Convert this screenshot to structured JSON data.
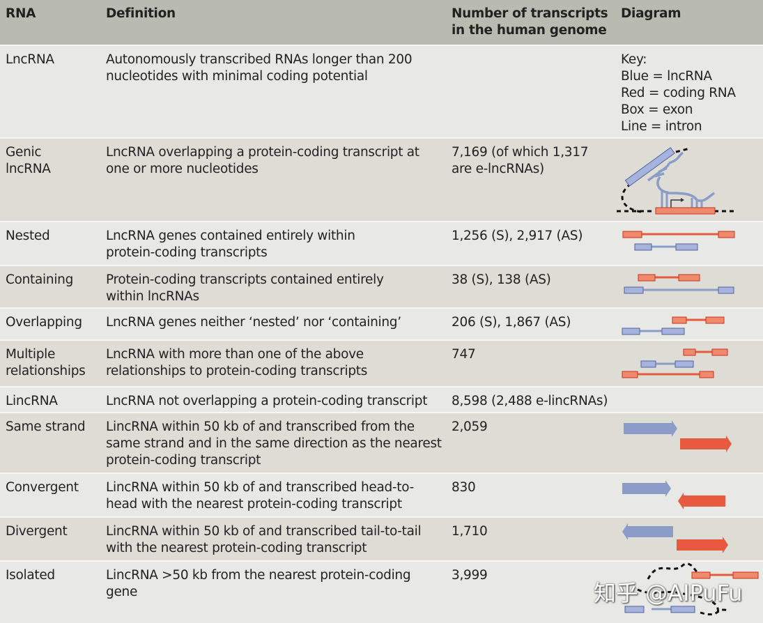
{
  "colors": {
    "lncrna": "#8c9cc8",
    "coding": "#e85a40",
    "header_bg": "#b9bab0",
    "row_light": "#e8e8e4",
    "row_dark": "#dddcd5"
  },
  "header": {
    "rna": "RNA",
    "definition": "Definition",
    "number": "Number of transcripts\nin the human genome",
    "diagram": "Diagram"
  },
  "rows": [
    {
      "rna": "LncRNA",
      "definition": "Autonomously transcribed RNAs longer than 200\nnucleotides with minimal coding potential",
      "number": "",
      "key": "Key:\nBlue = lncRNA\nRed = coding RNA\nBox = exon\nLine = intron"
    },
    {
      "rna": "Genic\nlncRNA",
      "definition": "LncRNA overlapping a protein-coding transcript at\none or more nucleotides",
      "number": "7,169 (of which 1,317\nare e-lncRNAs)",
      "diagram": "genic-structure"
    },
    {
      "rna": "Nested",
      "definition": "LncRNA genes contained entirely within\nprotein-coding transcripts",
      "number": "1,256 (S), 2,917 (AS)",
      "diagram": "nested"
    },
    {
      "rna": "Containing",
      "definition": "Protein-coding transcripts contained entirely\nwithin lncRNAs",
      "number": "38 (S), 138 (AS)",
      "diagram": "containing"
    },
    {
      "rna": "Overlapping",
      "definition": "LncRNA genes neither ‘nested’ nor ‘containing’",
      "number": "206 (S), 1,867 (AS)",
      "diagram": "overlapping"
    },
    {
      "rna": "Multiple\nrelationships",
      "definition": "LncRNA with more than one of the above\nrelationships to protein-coding transcripts",
      "number": "747",
      "diagram": "multiple"
    },
    {
      "rna": "LincRNA",
      "definition": "LncRNA not overlapping a protein-coding transcript",
      "number": "8,598 (2,488 e-lincRNAs)"
    },
    {
      "rna": "Same strand",
      "definition": "LincRNA within 50 kb of and transcribed from the\nsame strand and in the same direction as the nearest\nprotein-coding transcript",
      "number": "2,059",
      "diagram": "same-strand-arrows"
    },
    {
      "rna": "Convergent",
      "definition": "LincRNA within 50 kb of and transcribed head-to-\nhead with the nearest protein-coding transcript",
      "number": "830",
      "diagram": "convergent-arrows"
    },
    {
      "rna": "Divergent",
      "definition": "LincRNA within 50 kb of and transcribed tail-to-tail\nwith the nearest protein-coding transcript",
      "number": "1,710",
      "diagram": "divergent-arrows"
    },
    {
      "rna": "Isolated",
      "definition": "LincRNA >50 kb from the nearest protein-coding\ngene",
      "number": "3,999",
      "diagram": "isolated"
    }
  ],
  "watermark": "知乎 @AIPuFu"
}
